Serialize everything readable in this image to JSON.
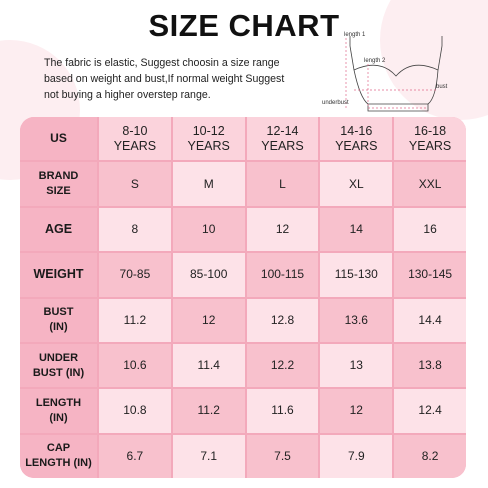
{
  "header": {
    "title": "SIZE CHART",
    "description": [
      "The fabric is elastic, Suggest choosin a size range",
      "based on weight and bust,If normal weight Suggest",
      "not buying a higher overstep range."
    ]
  },
  "diagram": {
    "labels": [
      "length 1",
      "length 2",
      "bust",
      "underbust"
    ]
  },
  "table": {
    "corner": "US",
    "columns": [
      [
        "8-10",
        "YEARS"
      ],
      [
        "10-12",
        "YEARS"
      ],
      [
        "12-14",
        "YEARS"
      ],
      [
        "14-16",
        "YEARS"
      ],
      [
        "16-18",
        "YEARS"
      ]
    ],
    "rows": [
      {
        "label": [
          "BRAND",
          "SIZE"
        ],
        "values": [
          "S",
          "M",
          "L",
          "XL",
          "XXL"
        ]
      },
      {
        "label": [
          "AGE"
        ],
        "values": [
          "8",
          "10",
          "12",
          "14",
          "16"
        ]
      },
      {
        "label": [
          "WEIGHT"
        ],
        "values": [
          "70-85",
          "85-100",
          "100-115",
          "115-130",
          "130-145"
        ]
      },
      {
        "label": [
          "BUST",
          "(IN)"
        ],
        "values": [
          "11.2",
          "12",
          "12.8",
          "13.6",
          "14.4"
        ]
      },
      {
        "label": [
          "UNDER",
          "BUST (IN)"
        ],
        "values": [
          "10.6",
          "11.4",
          "12.2",
          "13",
          "13.8"
        ]
      },
      {
        "label": [
          "LENGTH",
          "(IN)"
        ],
        "values": [
          "10.8",
          "11.2",
          "11.6",
          "12",
          "12.4"
        ]
      },
      {
        "label": [
          "CAP",
          "LENGTH (IN)"
        ],
        "values": [
          "6.7",
          "7.1",
          "7.5",
          "7.9",
          "8.2"
        ]
      }
    ]
  }
}
